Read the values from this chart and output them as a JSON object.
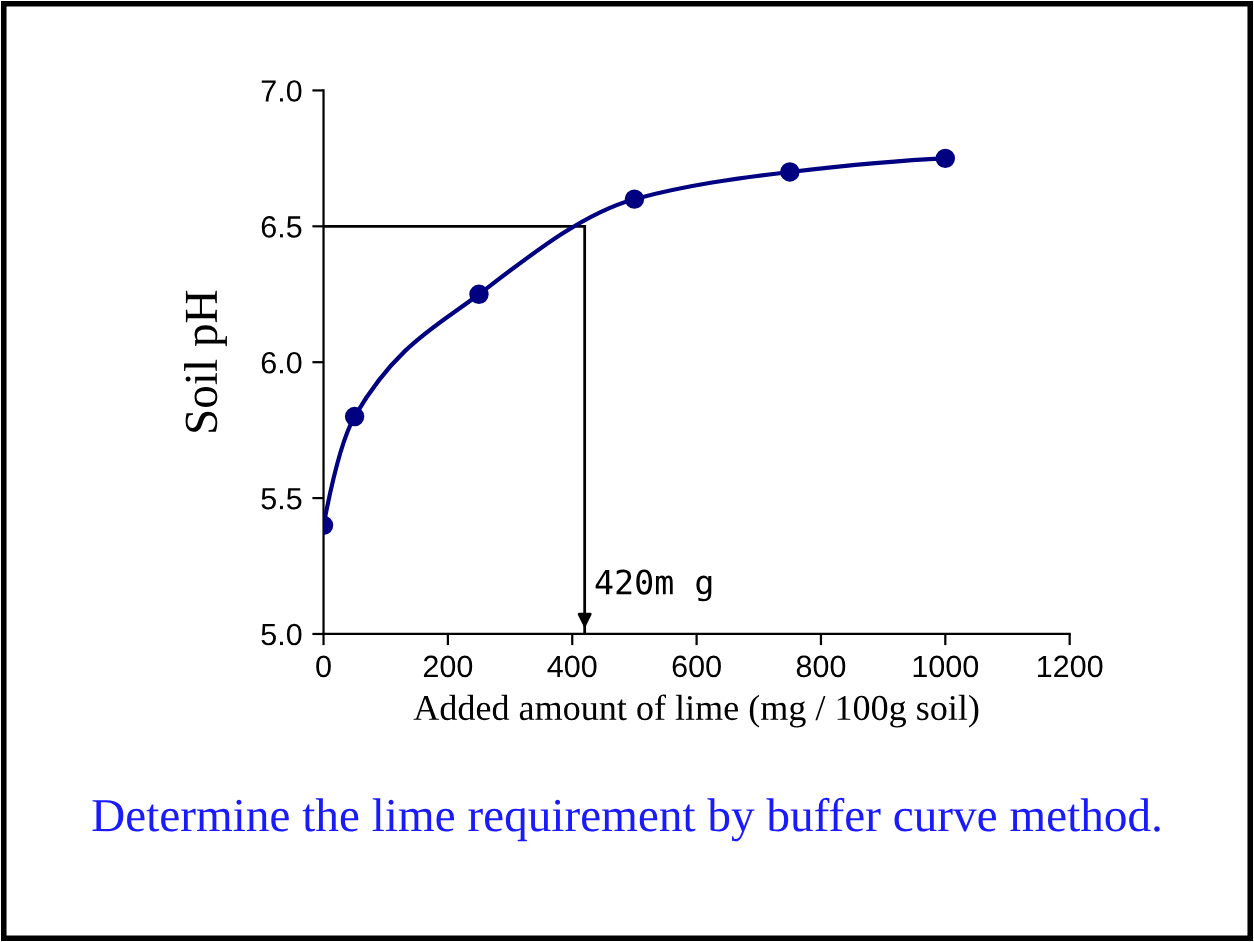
{
  "chart_data": {
    "type": "line",
    "xlabel": "Added amount of lime (mg / 100g soil)",
    "ylabel": "Soil pH",
    "x": [
      0,
      50,
      250,
      500,
      750,
      1000
    ],
    "series": [
      {
        "color": "#000080",
        "values": [
          5.4,
          5.8,
          6.25,
          6.6,
          6.7,
          6.75
        ]
      }
    ],
    "marker": "circle",
    "line_style": "solid",
    "xlim": [
      0,
      1200
    ],
    "xticks": [
      0,
      200,
      400,
      600,
      800,
      1000,
      1200
    ],
    "ylim": [
      5.0,
      7.0
    ],
    "yticks": [
      {
        "value": 5.0,
        "label": "5.0"
      },
      {
        "value": 5.5,
        "label": "5.5"
      },
      {
        "value": 6.0,
        "label": "6.0"
      },
      {
        "value": 6.5,
        "label": "6.5"
      },
      {
        "value": 7.0,
        "label": "7.0"
      }
    ],
    "ref_lines": [
      {
        "axis": "y",
        "value": 6.5,
        "color": "#000000"
      },
      {
        "axis": "x",
        "value": 420,
        "label": "420m g",
        "color": "#000000"
      }
    ],
    "annotations": [
      "Determine the lime requirement by buffer curve method."
    ],
    "grid": false,
    "legend": false
  }
}
